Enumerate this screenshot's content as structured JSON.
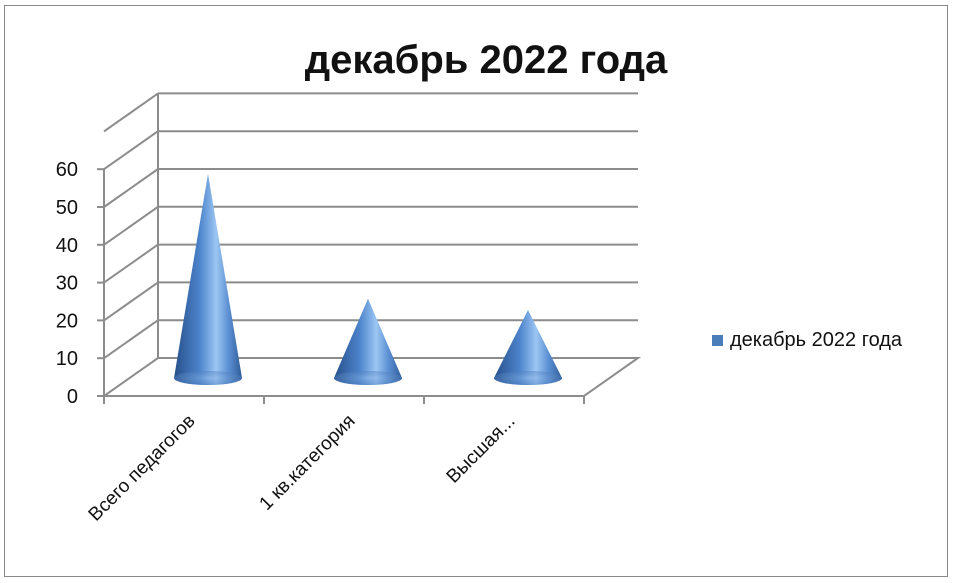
{
  "chart_data": {
    "type": "bar",
    "shape": "cone-3d",
    "title": "декабрь 2022 года",
    "categories": [
      "Всего педагогов",
      "1 кв.категория",
      "Высшая..."
    ],
    "series": [
      {
        "name": "декабрь 2022 года",
        "values": [
          54,
          21,
          18
        ],
        "color": "#4a7ebb"
      }
    ],
    "ylim": [
      0,
      60
    ],
    "yticks": [
      "0",
      "10",
      "20",
      "30",
      "40",
      "50",
      "60"
    ],
    "grid": true,
    "legend": "right"
  }
}
